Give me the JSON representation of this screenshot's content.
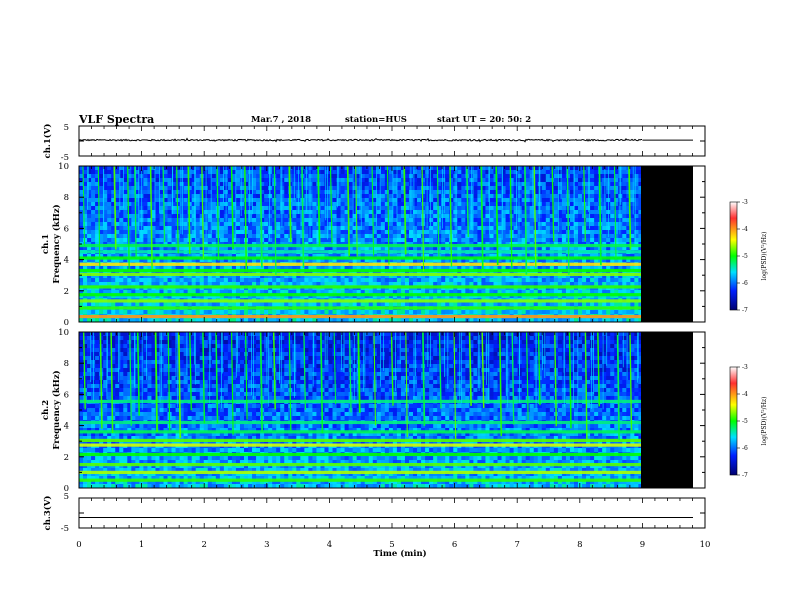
{
  "header": {
    "title": "VLF Spectra",
    "date": "Mar.7 , 2018",
    "station": "station=HUS",
    "start": "start UT = 20: 50: 2"
  },
  "chart_data": {
    "type": "heatmap",
    "x_axis": {
      "label": "Time (min)",
      "range": [
        0,
        10
      ],
      "ticks": [
        "0",
        "1",
        "2",
        "3",
        "4",
        "5",
        "6",
        "7",
        "8",
        "9",
        "10"
      ],
      "data_end_min": 9.0
    },
    "waveform_ch1": {
      "label": "ch.1(V)",
      "ylim": [
        -5,
        5
      ],
      "ticks": [
        "5",
        "-5"
      ],
      "mean": 0.3,
      "amplitude": 0.25
    },
    "waveform_ch3": {
      "label": "ch.3(V)",
      "ylim": [
        -5,
        5
      ],
      "ticks": [
        "5",
        "-5"
      ],
      "mean": -1.5,
      "amplitude": 0.0
    },
    "spectrograms": [
      {
        "label": "ch.1 Frequency (kHz)",
        "label_line1": "ch.1",
        "label_line2": "Frequency (kHz)",
        "ylim": [
          0,
          10
        ],
        "yticks": [
          "0",
          "2",
          "4",
          "6",
          "8",
          "10"
        ],
        "background_log_psd_high": -6.2,
        "background_log_psd_low": -5.6,
        "bands_khz": [
          {
            "f": 0.35,
            "level": -4.0
          },
          {
            "f": 0.9,
            "level": -4.9
          },
          {
            "f": 1.35,
            "level": -4.7
          },
          {
            "f": 1.75,
            "level": -5.0
          },
          {
            "f": 2.25,
            "level": -4.9
          },
          {
            "f": 3.05,
            "level": -4.7
          },
          {
            "f": 3.3,
            "level": -5.0
          },
          {
            "f": 3.7,
            "level": -4.3
          },
          {
            "f": 4.1,
            "level": -5.0
          },
          {
            "f": 4.5,
            "level": -5.4
          },
          {
            "f": 4.9,
            "level": -5.2
          }
        ],
        "whistler_onsets_min": [
          0.08,
          0.32,
          0.55,
          0.78,
          0.9,
          1.15,
          1.35,
          1.55,
          1.72,
          1.98,
          2.18,
          2.42,
          2.62,
          2.9,
          3.1,
          3.35,
          3.55,
          3.82,
          4.05,
          4.28,
          4.45,
          4.7,
          4.95,
          5.2,
          5.45,
          5.72,
          5.95,
          6.2,
          6.42,
          6.68,
          6.92,
          7.1,
          7.3,
          7.55,
          7.8,
          8.05,
          8.3,
          8.55,
          8.78
        ]
      },
      {
        "label": "ch.2 Frequency (kHz)",
        "label_line1": "ch.2",
        "label_line2": "Frequency (kHz)",
        "ylim": [
          0,
          10
        ],
        "yticks": [
          "0",
          "2",
          "4",
          "6",
          "8",
          "10"
        ],
        "background_log_psd_high": -6.4,
        "background_log_psd_low": -5.7,
        "bands_khz": [
          {
            "f": 0.5,
            "level": -4.9
          },
          {
            "f": 1.0,
            "level": -4.6
          },
          {
            "f": 1.5,
            "level": -4.8
          },
          {
            "f": 2.15,
            "level": -5.0
          },
          {
            "f": 2.75,
            "level": -4.5
          },
          {
            "f": 3.05,
            "level": -4.8
          },
          {
            "f": 3.6,
            "level": -5.2
          },
          {
            "f": 4.2,
            "level": -5.3
          },
          {
            "f": 5.55,
            "level": -5.3
          }
        ],
        "whistler_onsets_min": [
          0.1,
          0.35,
          0.52,
          0.8,
          0.95,
          1.2,
          1.4,
          1.6,
          1.75,
          2.0,
          2.2,
          2.45,
          2.65,
          2.92,
          3.12,
          3.38,
          3.58,
          3.85,
          4.08,
          4.3,
          4.48,
          4.72,
          4.98,
          5.22,
          5.48,
          5.75,
          5.98,
          6.22,
          6.45,
          6.7,
          6.95,
          7.12,
          7.32,
          7.58,
          7.82,
          8.08,
          8.32,
          8.58,
          8.8
        ]
      }
    ],
    "colorbar": {
      "label": "log(PSD)(V²/Hz)",
      "range": [
        -7,
        -3
      ],
      "ticks": [
        "-3",
        "-4",
        "-5",
        "-6",
        "-7"
      ],
      "colormap": [
        "#ffffff",
        "#ff0000",
        "#ffff00",
        "#00ff00",
        "#00ffff",
        "#0000ff",
        "#000080"
      ]
    },
    "colors": {
      "nodata": "#000000",
      "trace": "#000000"
    }
  }
}
